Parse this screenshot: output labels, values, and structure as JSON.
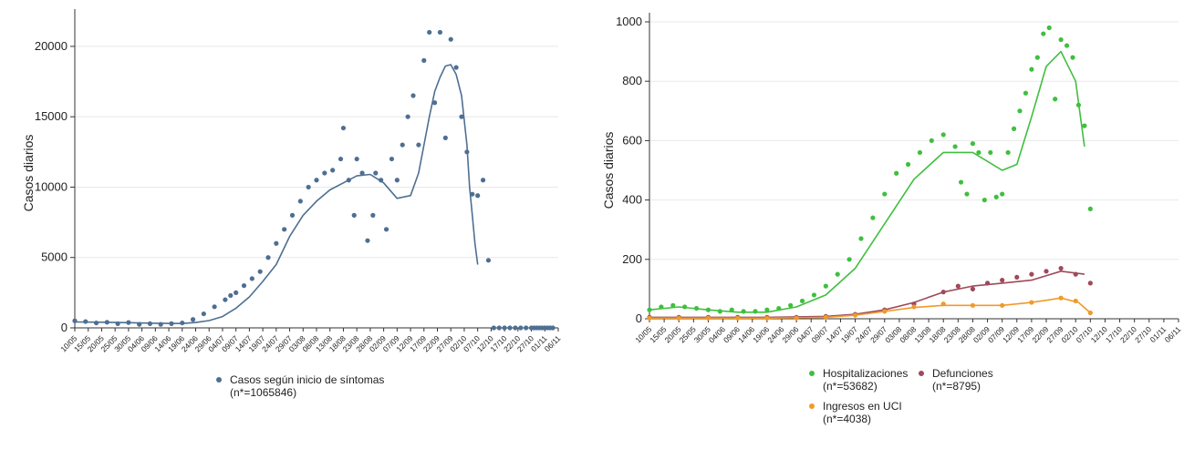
{
  "chart_data": [
    {
      "type": "scatter",
      "ylabel": "Casos diarios",
      "xlabel": "",
      "ylim": [
        0,
        22000
      ],
      "yticks": [
        0,
        5000,
        10000,
        15000,
        20000
      ],
      "ytick_labels": [
        "0",
        "5000",
        "10000",
        "15000",
        "20000"
      ],
      "xtick_labels": [
        "10/05",
        "15/05",
        "20/05",
        "25/05",
        "30/05",
        "04/06",
        "09/06",
        "14/06",
        "19/06",
        "24/06",
        "29/06",
        "04/07",
        "09/07",
        "14/07",
        "19/07",
        "24/07",
        "29/07",
        "03/08",
        "08/08",
        "13/08",
        "18/08",
        "23/08",
        "28/08",
        "02/09",
        "07/09",
        "12/09",
        "17/09",
        "22/09",
        "27/09",
        "02/10",
        "07/10",
        "12/10",
        "17/10",
        "22/10",
        "27/10",
        "01/11",
        "06/11"
      ],
      "legend_position": "bottom",
      "grid": true,
      "series": [
        {
          "name": "Casos según inicio de síntomas",
          "legend_sub": "(n*=1065846)",
          "color": "#4e6f92",
          "points_x": [
            0,
            4,
            8,
            12,
            16,
            20,
            24,
            28,
            32,
            36,
            40,
            44,
            48,
            52,
            56,
            58,
            60,
            63,
            66,
            69,
            72,
            75,
            78,
            81,
            84,
            87,
            90,
            93,
            96,
            99,
            100,
            102,
            104,
            105,
            107,
            109,
            111,
            112,
            114,
            116,
            118,
            120,
            122,
            124,
            126,
            128,
            130,
            132,
            134,
            136,
            138,
            140,
            142,
            144,
            146,
            148,
            150,
            152,
            154,
            156,
            158,
            160,
            162,
            164,
            166,
            168,
            170,
            171,
            172,
            173,
            174,
            175,
            176,
            177,
            178
          ],
          "points_y": [
            500,
            450,
            350,
            400,
            300,
            380,
            250,
            300,
            250,
            300,
            350,
            600,
            1000,
            1500,
            2000,
            2300,
            2500,
            3000,
            3500,
            4000,
            5000,
            6000,
            7000,
            8000,
            9000,
            10000,
            10500,
            11000,
            11200,
            12000,
            14200,
            10500,
            8000,
            12000,
            11000,
            6200,
            8000,
            11000,
            10500,
            7000,
            12000,
            10500,
            13000,
            15000,
            16500,
            13000,
            19000,
            21000,
            16000,
            21000,
            13500,
            20500,
            18500,
            15000,
            12500,
            9500,
            9400,
            10500,
            4800,
            0,
            0,
            0,
            0,
            0,
            0,
            0,
            0,
            0,
            0,
            0,
            0,
            0,
            0,
            0,
            0
          ],
          "smooth_x": [
            0,
            10,
            20,
            30,
            40,
            45,
            50,
            55,
            60,
            65,
            70,
            75,
            80,
            85,
            90,
            95,
            100,
            105,
            110,
            115,
            120,
            125,
            128,
            130,
            132,
            134,
            136,
            138,
            140,
            142,
            144,
            146,
            147,
            148,
            149,
            150
          ],
          "smooth_y": [
            420,
            400,
            370,
            330,
            310,
            380,
            520,
            800,
            1400,
            2200,
            3300,
            4500,
            6500,
            8000,
            9000,
            9800,
            10300,
            10800,
            10900,
            10300,
            9200,
            9400,
            11000,
            13000,
            15000,
            16800,
            17800,
            18600,
            18700,
            18000,
            16500,
            13000,
            10000,
            8000,
            6000,
            4500
          ]
        }
      ]
    },
    {
      "type": "scatter",
      "ylabel": "Casos diarios",
      "xlabel": "",
      "ylim": [
        0,
        1000
      ],
      "yticks": [
        0,
        200,
        400,
        600,
        800,
        1000
      ],
      "ytick_labels": [
        "0",
        "200",
        "400",
        "600",
        "800",
        "1000"
      ],
      "xtick_labels": [
        "10/05",
        "15/05",
        "20/05",
        "25/05",
        "30/05",
        "04/06",
        "09/06",
        "14/06",
        "19/06",
        "24/06",
        "29/06",
        "04/07",
        "09/07",
        "14/07",
        "19/07",
        "24/07",
        "29/07",
        "03/08",
        "08/08",
        "13/08",
        "18/08",
        "23/08",
        "28/08",
        "02/09",
        "07/09",
        "12/09",
        "17/09",
        "22/09",
        "27/09",
        "02/10",
        "07/10",
        "12/10",
        "17/10",
        "22/10",
        "27/10",
        "01/11",
        "06/11"
      ],
      "legend_position": "bottom",
      "grid": true,
      "series": [
        {
          "name": "Hospitalizaciones",
          "legend_sub": "(n*=53682)",
          "color": "#3fbf3f",
          "points_x": [
            0,
            4,
            8,
            12,
            16,
            20,
            24,
            28,
            32,
            36,
            40,
            44,
            48,
            52,
            56,
            60,
            64,
            68,
            72,
            76,
            80,
            84,
            88,
            92,
            96,
            100,
            104,
            106,
            108,
            110,
            112,
            114,
            116,
            118,
            120,
            122,
            124,
            126,
            128,
            130,
            132,
            134,
            136,
            138,
            140,
            142,
            144,
            146,
            148,
            150
          ],
          "points_y": [
            30,
            40,
            45,
            40,
            35,
            30,
            25,
            30,
            25,
            25,
            30,
            35,
            45,
            60,
            80,
            110,
            150,
            200,
            270,
            340,
            420,
            490,
            520,
            560,
            600,
            620,
            580,
            460,
            420,
            590,
            560,
            400,
            560,
            410,
            420,
            560,
            640,
            700,
            760,
            840,
            880,
            960,
            980,
            740,
            940,
            920,
            880,
            720,
            650,
            370
          ],
          "smooth_x": [
            0,
            10,
            20,
            30,
            40,
            50,
            60,
            70,
            80,
            90,
            100,
            105,
            110,
            115,
            120,
            125,
            130,
            135,
            140,
            145,
            148
          ],
          "smooth_y": [
            30,
            40,
            30,
            22,
            22,
            40,
            80,
            170,
            320,
            470,
            560,
            560,
            560,
            530,
            500,
            520,
            680,
            850,
            900,
            800,
            580
          ]
        },
        {
          "name": "Defunciones",
          "legend_sub": "(n*=8795)",
          "color": "#9e4a5a",
          "points_x": [
            0,
            10,
            20,
            30,
            40,
            50,
            60,
            70,
            80,
            90,
            100,
            105,
            110,
            115,
            120,
            125,
            130,
            135,
            140,
            145,
            150
          ],
          "points_y": [
            5,
            5,
            5,
            5,
            5,
            5,
            8,
            15,
            30,
            50,
            90,
            110,
            100,
            120,
            130,
            140,
            150,
            160,
            170,
            150,
            120
          ],
          "smooth_x": [
            0,
            20,
            40,
            60,
            70,
            80,
            90,
            100,
            110,
            120,
            130,
            140,
            148
          ],
          "smooth_y": [
            5,
            5,
            5,
            8,
            15,
            30,
            55,
            90,
            110,
            120,
            130,
            160,
            150
          ]
        },
        {
          "name": "Ingresos en UCI",
          "legend_sub": "(n*=4038)",
          "color": "#f09a2a",
          "points_x": [
            0,
            10,
            20,
            30,
            40,
            50,
            60,
            70,
            80,
            90,
            100,
            110,
            120,
            130,
            140,
            145,
            150
          ],
          "points_y": [
            2,
            2,
            2,
            2,
            2,
            2,
            5,
            12,
            25,
            40,
            50,
            45,
            45,
            55,
            70,
            60,
            20
          ],
          "smooth_x": [
            0,
            40,
            60,
            70,
            80,
            90,
            100,
            110,
            120,
            130,
            140,
            146,
            150
          ],
          "smooth_y": [
            2,
            2,
            5,
            12,
            25,
            38,
            45,
            45,
            45,
            55,
            70,
            55,
            20
          ]
        }
      ]
    }
  ]
}
